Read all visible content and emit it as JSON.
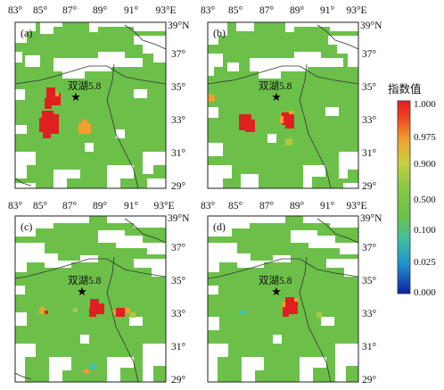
{
  "colorbar": {
    "title": "指数值",
    "labels": [
      "1.000",
      "0.975",
      "0.900",
      "0.500",
      "0.100",
      "0.025",
      "0.000"
    ]
  },
  "x_ticks": [
    "83°",
    "85°",
    "87°",
    "89°",
    "91°",
    "93°E"
  ],
  "y_ticks": [
    "39°N",
    "37°",
    "35°",
    "33°",
    "31°",
    "29°"
  ],
  "panels": [
    {
      "label": "(a)",
      "event": "双湖5.8"
    },
    {
      "label": "(b)",
      "event": "双湖5.8"
    },
    {
      "label": "(c)",
      "event": "双湖5.8"
    },
    {
      "label": "(d)",
      "event": "双湖5.8"
    }
  ],
  "map_data": {
    "lon_range": [
      83,
      93
    ],
    "lat_range": [
      29,
      39
    ],
    "epicenter": {
      "lon": 88.0,
      "lat": 34.3
    },
    "colors": {
      "background": "#6cc04a",
      "no_data": "#ffffff",
      "index_1_000": "#e02020",
      "index_0_975": "#f0a030",
      "index_0_900": "#b0c840",
      "index_0_500": "#6cc04a",
      "index_0_100": "#40c0b0",
      "index_0_025": "#2080d0",
      "index_0_000": "#1020a0"
    }
  }
}
